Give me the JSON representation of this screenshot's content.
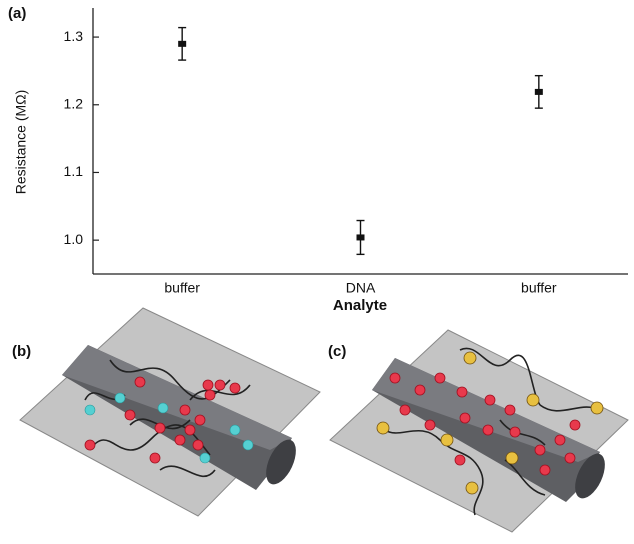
{
  "chart_data": {
    "type": "errorbar",
    "panel_label": "(a)",
    "ylabel": "Resistance (MΩ)",
    "xlabel": "Analyte",
    "categories": [
      "buffer",
      "DNA",
      "buffer"
    ],
    "values": [
      1.29,
      1.004,
      1.219
    ],
    "errors": [
      0.024,
      0.025,
      0.024
    ],
    "color": "#111111",
    "ylim": [
      0.95,
      1.34
    ],
    "yticks": [
      {
        "value": 1,
        "label": "1.0"
      },
      1.1,
      1.2,
      1.3
    ]
  },
  "panels": {
    "b": {
      "label": "(b)"
    },
    "c": {
      "label": "(c)"
    }
  }
}
